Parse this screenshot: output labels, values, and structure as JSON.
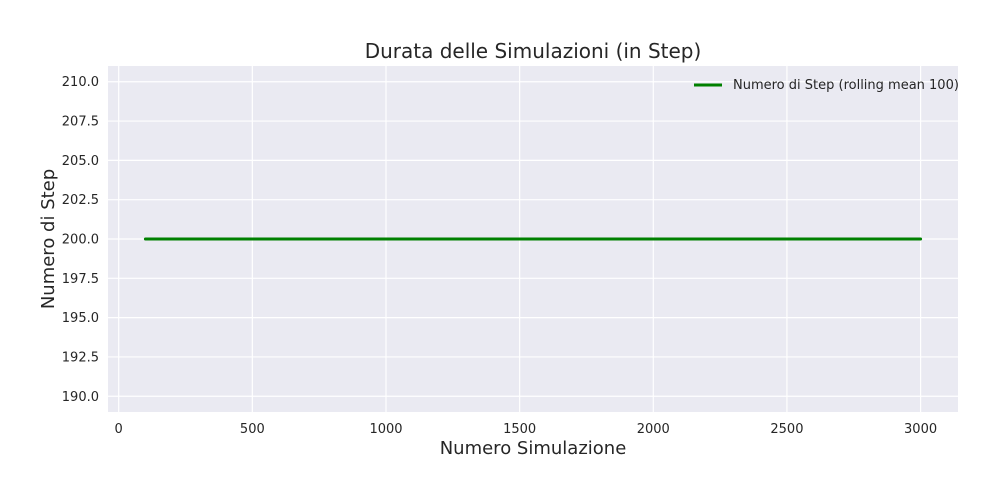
{
  "chart_data": {
    "type": "line",
    "title": "Durata delle Simulazioni (in Step)",
    "xlabel": "Numero Simulazione",
    "ylabel": "Numero di Step",
    "xlim": [
      -40,
      3140
    ],
    "ylim": [
      189,
      211
    ],
    "xticks": [
      0,
      500,
      1000,
      1500,
      2000,
      2500,
      3000
    ],
    "xtick_labels": [
      "0",
      "500",
      "1000",
      "1500",
      "2000",
      "2500",
      "3000"
    ],
    "yticks": [
      190.0,
      192.5,
      195.0,
      197.5,
      200.0,
      202.5,
      205.0,
      207.5,
      210.0
    ],
    "ytick_labels": [
      "190.0",
      "192.5",
      "195.0",
      "197.5",
      "200.0",
      "202.5",
      "205.0",
      "207.5",
      "210.0"
    ],
    "grid": true,
    "legend_position": "top-right",
    "background_color": "#eaeaf2",
    "series": [
      {
        "name": "Numero di Step (rolling mean 100)",
        "color": "#008000",
        "x": [
          100,
          3000
        ],
        "y": [
          200,
          200
        ]
      }
    ]
  }
}
